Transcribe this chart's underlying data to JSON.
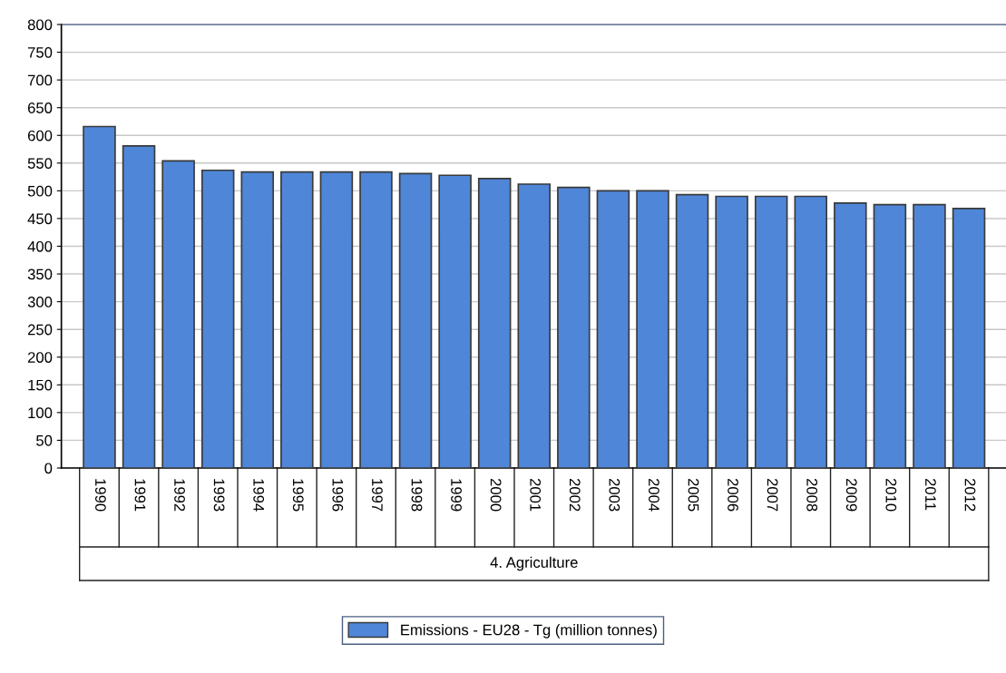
{
  "chart_data": {
    "type": "bar",
    "categories": [
      "1990",
      "1991",
      "1992",
      "1993",
      "1994",
      "1995",
      "1996",
      "1997",
      "1998",
      "1999",
      "2000",
      "2001",
      "2002",
      "2003",
      "2004",
      "2005",
      "2006",
      "2007",
      "2008",
      "2009",
      "2010",
      "2011",
      "2012"
    ],
    "xlabel": "4. Agriculture",
    "series": [
      {
        "name": "Emissions - EU28 - Tg (million tonnes)",
        "color": "#4f86d8",
        "values": [
          616,
          581,
          554,
          537,
          534,
          534,
          534,
          534,
          531,
          528,
          522,
          512,
          506,
          500,
          500,
          493,
          490,
          490,
          490,
          478,
          475,
          475,
          468
        ]
      }
    ],
    "ylim": [
      0,
      800
    ],
    "yticks": [
      0,
      50,
      100,
      150,
      200,
      250,
      300,
      350,
      400,
      450,
      500,
      550,
      600,
      650,
      700,
      750,
      800
    ],
    "grid": "y",
    "legend": "bottom"
  }
}
